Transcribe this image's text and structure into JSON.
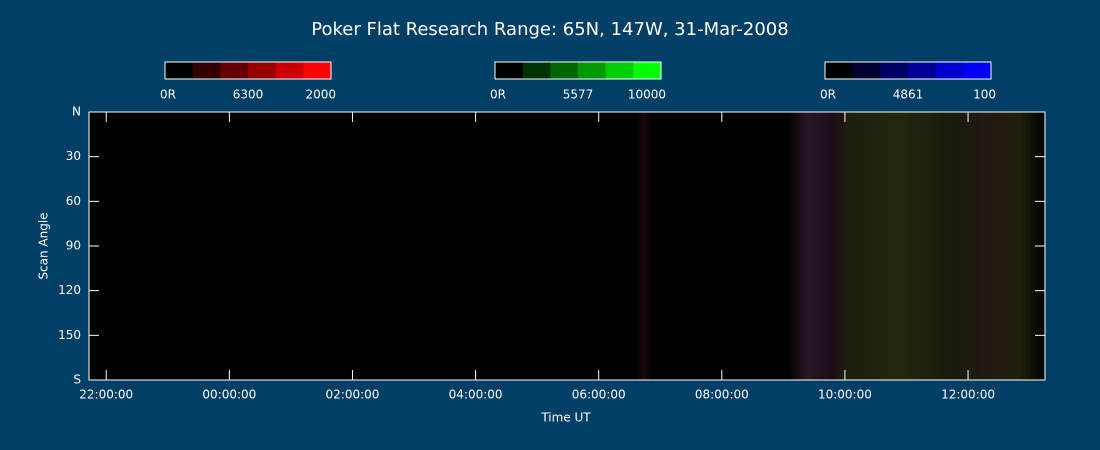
{
  "chart_data": {
    "type": "keogram",
    "title": "Poker Flat Research Range: 65N, 147W, 31-Mar-2008",
    "x_label": "Time UT",
    "y_label": "Scan Angle",
    "xlim": [
      21.72,
      37.25
    ],
    "xticks": [
      {
        "value": 22,
        "label": "22:00:00"
      },
      {
        "value": 24,
        "label": "00:00:00"
      },
      {
        "value": 26,
        "label": "02:00:00"
      },
      {
        "value": 28,
        "label": "04:00:00"
      },
      {
        "value": 30,
        "label": "06:00:00"
      },
      {
        "value": 32,
        "label": "08:00:00"
      },
      {
        "value": 34,
        "label": "10:00:00"
      },
      {
        "value": 36,
        "label": "12:00:00"
      }
    ],
    "ylim": [
      0,
      180
    ],
    "yticks": [
      {
        "value": 0,
        "label": "N"
      },
      30,
      60,
      90,
      120,
      150,
      {
        "value": 180,
        "label": "S"
      }
    ],
    "colorbars": [
      {
        "color": "#ff0000",
        "labels": [
          "0R",
          "6300",
          "2000"
        ]
      },
      {
        "color": "#00ff00",
        "labels": [
          "0R",
          "5577",
          "10000"
        ]
      },
      {
        "color": "#0000ff",
        "labels": [
          "0R",
          "4861",
          "100"
        ]
      }
    ]
  }
}
